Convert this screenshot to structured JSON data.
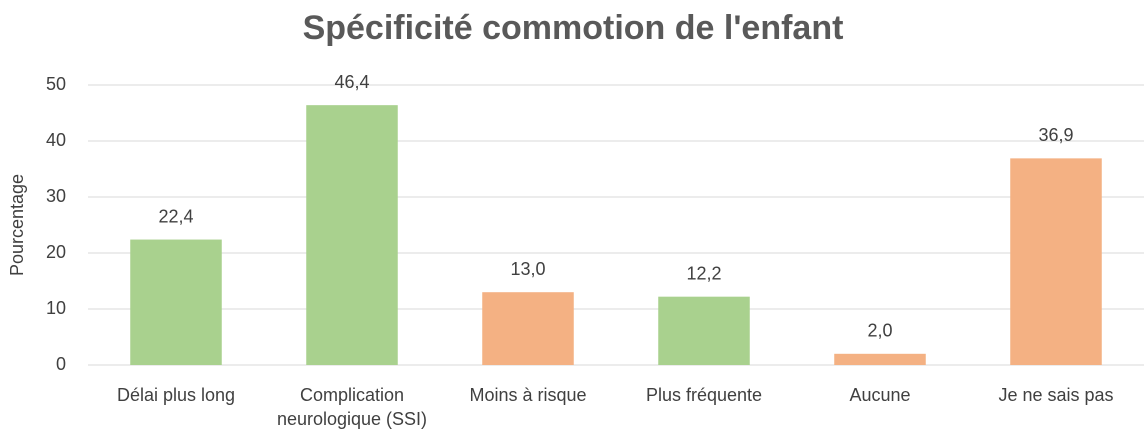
{
  "chart_data": {
    "type": "bar",
    "title": "Spécificité commotion de l'enfant",
    "y_label": "Pourcentage",
    "categories": [
      "Délai plus long",
      "Complication neurologique (SSI)",
      "Moins à risque",
      "Plus fréquente",
      "Aucune",
      "Je ne sais pas"
    ],
    "values": [
      22.4,
      46.4,
      13.0,
      12.2,
      2.0,
      36.9
    ],
    "value_labels": [
      "22,4",
      "46,4",
      "13,0",
      "12,2",
      "2,0",
      "36,9"
    ],
    "colors": [
      "#a9d18e",
      "#a9d18e",
      "#f4b183",
      "#a9d18e",
      "#f4b183",
      "#f4b183"
    ],
    "ylim": [
      0,
      50
    ],
    "yticks": [
      0,
      10,
      20,
      30,
      40,
      50
    ],
    "grid": true
  }
}
